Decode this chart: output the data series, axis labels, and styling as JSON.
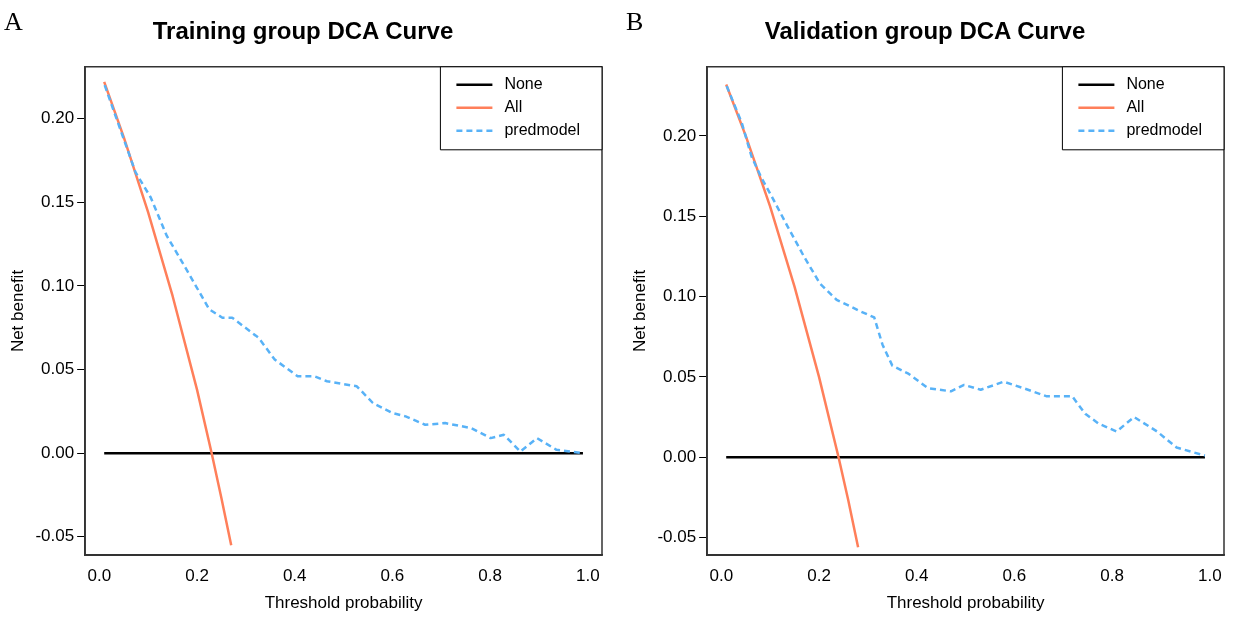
{
  "chart_data": [
    {
      "type": "line",
      "title": "Training group DCA Curve",
      "xlabel": "Threshold probability",
      "ylabel": "Net benefit",
      "annotations": [
        "A"
      ],
      "legend": "top right",
      "marker": "none",
      "xlim": [
        -0.029,
        1.029
      ],
      "ylim": [
        -0.061,
        0.231
      ],
      "xticks": [
        {
          "value": 0,
          "label": "0.0"
        },
        {
          "value": 0.2,
          "label": "0.2"
        },
        {
          "value": 0.4,
          "label": "0.4"
        },
        {
          "value": 0.6,
          "label": "0.6"
        },
        {
          "value": 0.8,
          "label": "0.8"
        },
        {
          "value": 1,
          "label": "1.0"
        }
      ],
      "yticks": [
        {
          "value": -0.05,
          "label": "-0.05"
        },
        {
          "value": 0,
          "label": "0.00"
        },
        {
          "value": 0.05,
          "label": "0.05"
        },
        {
          "value": 0.1,
          "label": "0.10"
        },
        {
          "value": 0.15,
          "label": "0.15"
        },
        {
          "value": 0.2,
          "label": "0.20"
        }
      ],
      "series": [
        {
          "name": "None",
          "color": "#000000",
          "line_style": "solid",
          "x": [
            0.01,
            0.99
          ],
          "values": [
            0,
            0
          ]
        },
        {
          "name": "All",
          "color": "#ff7f5a",
          "line_style": "solid",
          "x": [
            0.01,
            0.05,
            0.1,
            0.15,
            0.2,
            0.23,
            0.25,
            0.27
          ],
          "values": [
            0.222,
            0.189,
            0.144,
            0.094,
            0.038,
            0,
            -0.027,
            -0.055
          ]
        },
        {
          "name": "predmodel",
          "color": "#58b2f7",
          "line_style": "dashed",
          "x": [
            0.011,
            0.074,
            0.105,
            0.138,
            0.178,
            0.225,
            0.252,
            0.272,
            0.326,
            0.359,
            0.406,
            0.44,
            0.466,
            0.527,
            0.56,
            0.6,
            0.627,
            0.667,
            0.708,
            0.761,
            0.801,
            0.828,
            0.862,
            0.896,
            0.936,
            0.99
          ],
          "values": [
            0.22,
            0.168,
            0.153,
            0.13,
            0.11,
            0.086,
            0.081,
            0.081,
            0.069,
            0.056,
            0.046,
            0.046,
            0.043,
            0.04,
            0.03,
            0.024,
            0.022,
            0.017,
            0.018,
            0.015,
            0.009,
            0.011,
            0.001,
            0.009,
            0.002,
            0
          ]
        }
      ]
    },
    {
      "type": "line",
      "title": "Validation group DCA Curve",
      "xlabel": "Threshold probability",
      "ylabel": "Net benefit",
      "annotations": [
        "B"
      ],
      "legend": "top right",
      "marker": "none",
      "xlim": [
        -0.029,
        1.029
      ],
      "ylim": [
        -0.061,
        0.243
      ],
      "xticks": [
        {
          "value": 0,
          "label": "0.0"
        },
        {
          "value": 0.2,
          "label": "0.2"
        },
        {
          "value": 0.4,
          "label": "0.4"
        },
        {
          "value": 0.6,
          "label": "0.6"
        },
        {
          "value": 0.8,
          "label": "0.8"
        },
        {
          "value": 1,
          "label": "1.0"
        }
      ],
      "yticks": [
        {
          "value": -0.05,
          "label": "-0.05"
        },
        {
          "value": 0,
          "label": "0.00"
        },
        {
          "value": 0.05,
          "label": "0.05"
        },
        {
          "value": 0.1,
          "label": "0.10"
        },
        {
          "value": 0.15,
          "label": "0.15"
        },
        {
          "value": 0.2,
          "label": "0.20"
        }
      ],
      "series": [
        {
          "name": "None",
          "color": "#000000",
          "line_style": "solid",
          "x": [
            0.01,
            0.99
          ],
          "values": [
            0,
            0
          ]
        },
        {
          "name": "All",
          "color": "#ff7f5a",
          "line_style": "solid",
          "x": [
            0.01,
            0.05,
            0.1,
            0.15,
            0.2,
            0.24,
            0.26,
            0.28
          ],
          "values": [
            0.232,
            0.2,
            0.156,
            0.106,
            0.05,
            0,
            -0.027,
            -0.056
          ]
        },
        {
          "name": "predmodel",
          "color": "#58b2f7",
          "line_style": "dashed",
          "x": [
            0.011,
            0.042,
            0.062,
            0.082,
            0.102,
            0.135,
            0.169,
            0.202,
            0.236,
            0.283,
            0.313,
            0.33,
            0.35,
            0.383,
            0.423,
            0.47,
            0.497,
            0.531,
            0.578,
            0.618,
            0.665,
            0.718,
            0.745,
            0.772,
            0.809,
            0.845,
            0.892,
            0.932,
            0.99
          ],
          "values": [
            0.231,
            0.208,
            0.187,
            0.174,
            0.163,
            0.144,
            0.125,
            0.108,
            0.098,
            0.091,
            0.087,
            0.07,
            0.057,
            0.052,
            0.043,
            0.041,
            0.045,
            0.042,
            0.047,
            0.043,
            0.038,
            0.038,
            0.027,
            0.021,
            0.016,
            0.025,
            0.016,
            0.006,
            0.001
          ]
        }
      ]
    }
  ]
}
